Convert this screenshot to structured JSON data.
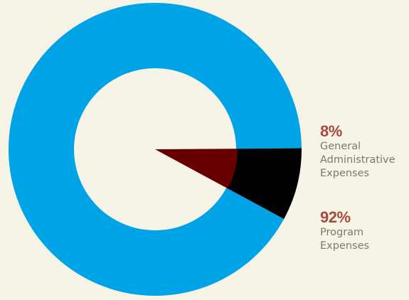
{
  "colors": {
    "background": "#f6f3e7",
    "program": "#00a4e6",
    "admin": "#000000",
    "inner_wedge": "#660000",
    "legend_pct": "#a84a3a",
    "legend_label": "#7a7875"
  },
  "chart_data": {
    "type": "pie",
    "style": "donut",
    "title": "",
    "slices": [
      {
        "key": "admin",
        "percent": 8,
        "value_label": "8%",
        "label_lines": [
          "General",
          "Administrative",
          "Expenses"
        ]
      },
      {
        "key": "program",
        "percent": 92,
        "value_label": "92%",
        "label_lines": [
          "Program",
          "Expenses"
        ]
      }
    ],
    "legend_position": "right"
  }
}
